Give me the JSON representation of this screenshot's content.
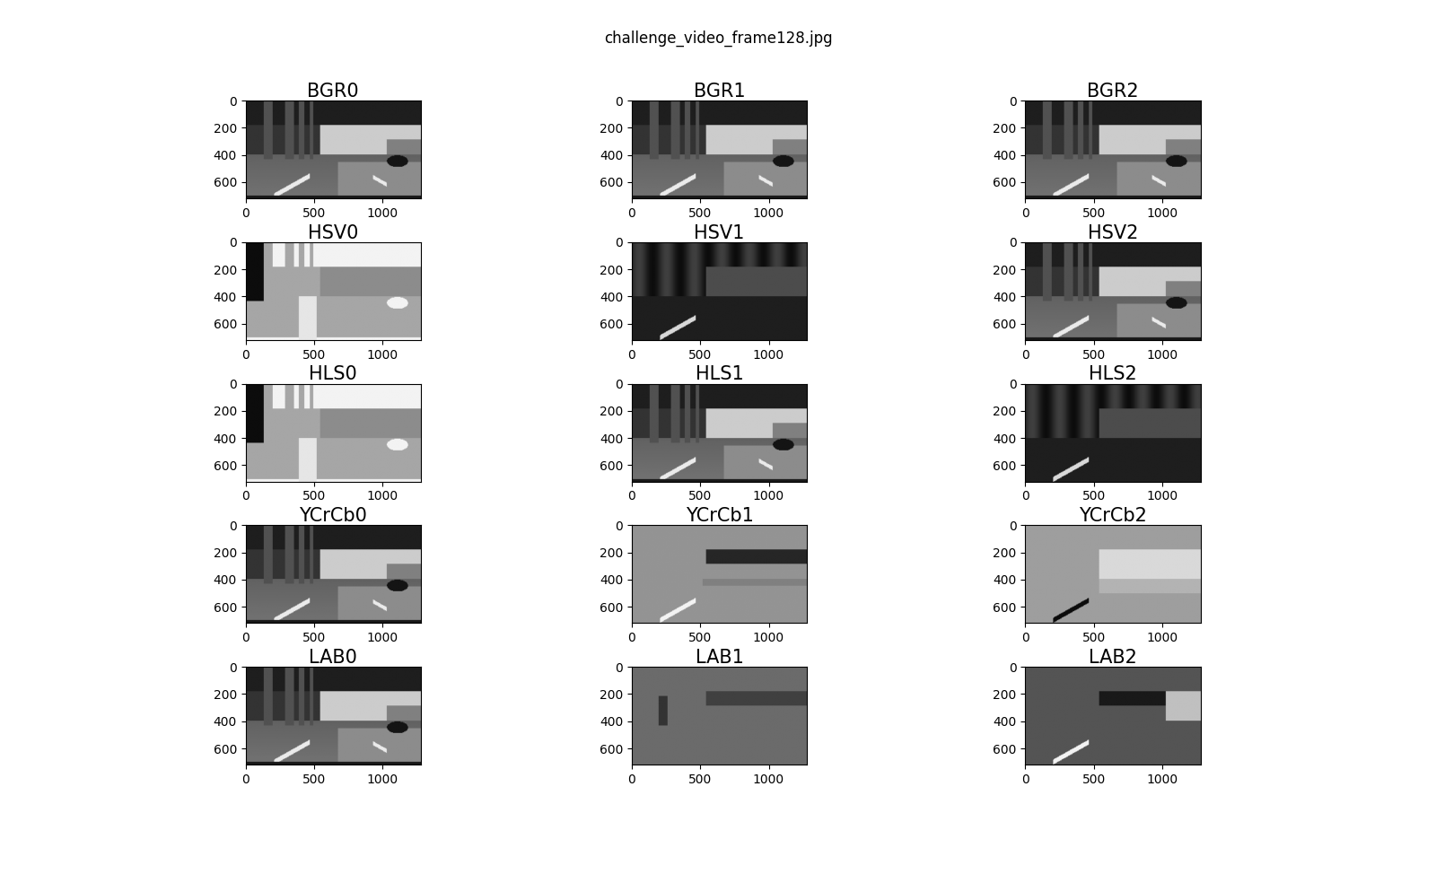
{
  "title": "challenge_video_frame128.jpg",
  "chart_data": [
    {
      "type": "image",
      "title": "BGR0",
      "xlim": [
        0,
        1280
      ],
      "ylim": [
        720,
        0
      ],
      "xticks": [
        0,
        500,
        1000
      ],
      "yticks": [
        0,
        200,
        400,
        600
      ]
    },
    {
      "type": "image",
      "title": "BGR1",
      "xlim": [
        0,
        1280
      ],
      "ylim": [
        720,
        0
      ],
      "xticks": [
        0,
        500,
        1000
      ],
      "yticks": [
        0,
        200,
        400,
        600
      ]
    },
    {
      "type": "image",
      "title": "BGR2",
      "xlim": [
        0,
        1280
      ],
      "ylim": [
        720,
        0
      ],
      "xticks": [
        0,
        500,
        1000
      ],
      "yticks": [
        0,
        200,
        400,
        600
      ]
    },
    {
      "type": "image",
      "title": "HSV0",
      "xlim": [
        0,
        1280
      ],
      "ylim": [
        720,
        0
      ],
      "xticks": [
        0,
        500,
        1000
      ],
      "yticks": [
        0,
        200,
        400,
        600
      ]
    },
    {
      "type": "image",
      "title": "HSV1",
      "xlim": [
        0,
        1280
      ],
      "ylim": [
        720,
        0
      ],
      "xticks": [
        0,
        500,
        1000
      ],
      "yticks": [
        0,
        200,
        400,
        600
      ]
    },
    {
      "type": "image",
      "title": "HSV2",
      "xlim": [
        0,
        1280
      ],
      "ylim": [
        720,
        0
      ],
      "xticks": [
        0,
        500,
        1000
      ],
      "yticks": [
        0,
        200,
        400,
        600
      ]
    },
    {
      "type": "image",
      "title": "HLS0",
      "xlim": [
        0,
        1280
      ],
      "ylim": [
        720,
        0
      ],
      "xticks": [
        0,
        500,
        1000
      ],
      "yticks": [
        0,
        200,
        400,
        600
      ]
    },
    {
      "type": "image",
      "title": "HLS1",
      "xlim": [
        0,
        1280
      ],
      "ylim": [
        720,
        0
      ],
      "xticks": [
        0,
        500,
        1000
      ],
      "yticks": [
        0,
        200,
        400,
        600
      ]
    },
    {
      "type": "image",
      "title": "HLS2",
      "xlim": [
        0,
        1280
      ],
      "ylim": [
        720,
        0
      ],
      "xticks": [
        0,
        500,
        1000
      ],
      "yticks": [
        0,
        200,
        400,
        600
      ]
    },
    {
      "type": "image",
      "title": "YCrCb0",
      "xlim": [
        0,
        1280
      ],
      "ylim": [
        720,
        0
      ],
      "xticks": [
        0,
        500,
        1000
      ],
      "yticks": [
        0,
        200,
        400,
        600
      ]
    },
    {
      "type": "image",
      "title": "YCrCb1",
      "xlim": [
        0,
        1280
      ],
      "ylim": [
        720,
        0
      ],
      "xticks": [
        0,
        500,
        1000
      ],
      "yticks": [
        0,
        200,
        400,
        600
      ]
    },
    {
      "type": "image",
      "title": "YCrCb2",
      "xlim": [
        0,
        1280
      ],
      "ylim": [
        720,
        0
      ],
      "xticks": [
        0,
        500,
        1000
      ],
      "yticks": [
        0,
        200,
        400,
        600
      ]
    },
    {
      "type": "image",
      "title": "LAB0",
      "xlim": [
        0,
        1280
      ],
      "ylim": [
        720,
        0
      ],
      "xticks": [
        0,
        500,
        1000
      ],
      "yticks": [
        0,
        200,
        400,
        600
      ]
    },
    {
      "type": "image",
      "title": "LAB1",
      "xlim": [
        0,
        1280
      ],
      "ylim": [
        720,
        0
      ],
      "xticks": [
        0,
        500,
        1000
      ],
      "yticks": [
        0,
        200,
        400,
        600
      ]
    },
    {
      "type": "image",
      "title": "LAB2",
      "xlim": [
        0,
        1280
      ],
      "ylim": [
        720,
        0
      ],
      "xticks": [
        0,
        500,
        1000
      ],
      "yticks": [
        0,
        200,
        400,
        600
      ]
    }
  ]
}
